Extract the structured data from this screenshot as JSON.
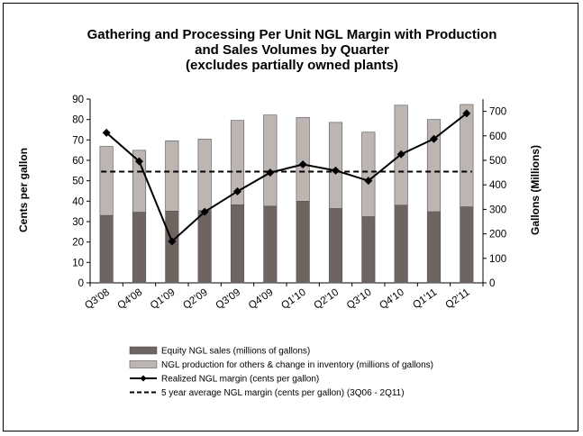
{
  "chart_data": {
    "type": "bar",
    "title_lines": [
      "Gathering and Processing Per Unit NGL Margin with Production",
      "and Sales Volumes by Quarter",
      "(excludes partially  owned plants)"
    ],
    "categories": [
      "Q3'08",
      "Q4'08",
      "Q1'09",
      "Q2'09",
      "Q3'09",
      "Q4'09",
      "Q1'10",
      "Q2'10",
      "Q3'10",
      "Q4'10",
      "Q1'11",
      "Q2'11"
    ],
    "ylabel_left": "Cents per gallon",
    "ylabel_right": "Gallons (Millions)",
    "ylim_left": [
      0,
      90
    ],
    "yticks_left": [
      0,
      10,
      20,
      30,
      40,
      50,
      60,
      70,
      80,
      90
    ],
    "ylim_right": [
      0,
      750
    ],
    "yticks_right": [
      0,
      100,
      200,
      300,
      400,
      500,
      600,
      700
    ],
    "series": [
      {
        "name": "Equity NGL sales (millions of gallons)",
        "kind": "stacked-bar",
        "axis": "right",
        "color": "#6e6462",
        "values": [
          275,
          288,
          293,
          295,
          318,
          313,
          333,
          303,
          270,
          317,
          290,
          310
        ]
      },
      {
        "name": "NGL production for others & change in inventory (millions of gallons)",
        "kind": "stacked-bar",
        "axis": "right",
        "color": "#bdb5b1",
        "values": [
          282,
          253,
          287,
          292,
          345,
          372,
          342,
          352,
          345,
          408,
          377,
          418
        ]
      },
      {
        "name": "Realized NGL margin (cents per gallon)",
        "kind": "line",
        "axis": "left",
        "color": "#000000",
        "values": [
          73.5,
          59.5,
          20.3,
          34.8,
          44.8,
          54.0,
          58.0,
          55.0,
          50.0,
          63.0,
          70.5,
          83.0
        ]
      },
      {
        "name": "5 year average NGL margin (cents per gallon) (3Q06 - 2Q11)",
        "kind": "dashed-line",
        "axis": "left",
        "color": "#000000",
        "value": 54.5
      }
    ]
  }
}
